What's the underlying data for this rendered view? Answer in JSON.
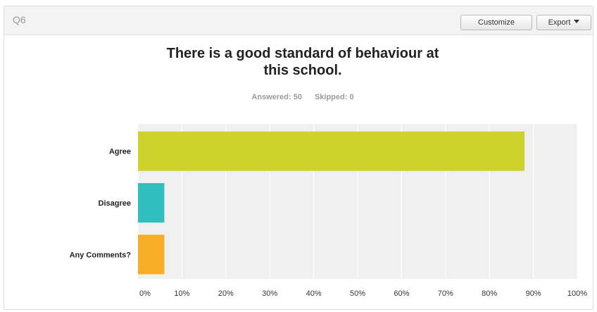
{
  "question": {
    "label": "Q6",
    "title_line1": "There is a good standard of behaviour at",
    "title_line2": "this school.",
    "answered": "Answered: 50",
    "skipped": "Skipped: 0"
  },
  "toolbar": {
    "customize_label": "Customize",
    "export_label": "Export"
  },
  "colors": {
    "agree": "#cdd32a",
    "disagree": "#30bfbf",
    "comments": "#f7ae25",
    "plot_bg": "#f0f0f0"
  },
  "chart_data": {
    "type": "bar",
    "orientation": "horizontal",
    "title": "There is a good standard of behaviour at this school.",
    "categories": [
      "Agree",
      "Disagree",
      "Any Comments?"
    ],
    "values": [
      88,
      6,
      6
    ],
    "unit": "%",
    "xlim": [
      0,
      100
    ],
    "xticks": [
      "0%",
      "10%",
      "20%",
      "30%",
      "40%",
      "50%",
      "60%",
      "70%",
      "80%",
      "90%",
      "100%"
    ],
    "grid": true,
    "legend": "none"
  }
}
